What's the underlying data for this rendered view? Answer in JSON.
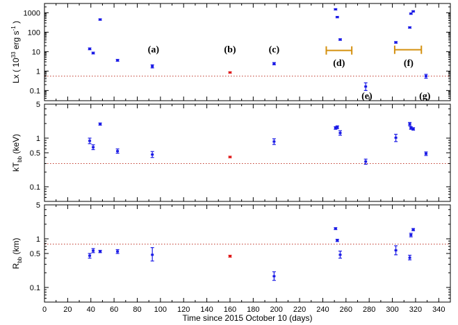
{
  "chart_data": {
    "type": "scatter",
    "xlabel": "Time since 2015 October 10 (days)",
    "xlim": [
      0,
      350
    ],
    "xticks": [
      0,
      20,
      40,
      60,
      80,
      100,
      120,
      140,
      160,
      180,
      200,
      220,
      240,
      260,
      280,
      300,
      320,
      340
    ],
    "colors": {
      "points": "#1a1ae6",
      "highlight": "#e01a1a",
      "reference_line": "#c0392b",
      "bracket": "#d4900f"
    },
    "panels": [
      {
        "id": "lx",
        "ylabel_main": "Lx ( 10",
        "ylabel_exp": "33",
        "ylabel_unit": " erg s",
        "ylabel_exp2": "-1",
        "ylabel_end": " )",
        "yscale": "log",
        "ylim": [
          0.03,
          3000
        ],
        "yticks": [
          0.1,
          1,
          10,
          100,
          1000
        ],
        "yticklabels": [
          "0.1",
          "1",
          "10",
          "100",
          "1000"
        ],
        "reference_y": 0.55,
        "points": [
          {
            "x": 39,
            "y": 14,
            "lo": 12.5,
            "hi": 15.5
          },
          {
            "x": 42,
            "y": 8.5,
            "lo": 7.6,
            "hi": 9.4
          },
          {
            "x": 48,
            "y": 450,
            "lo": 410,
            "hi": 490
          },
          {
            "x": 63,
            "y": 3.6,
            "lo": 3.2,
            "hi": 4.0
          },
          {
            "x": 93,
            "y": 1.75,
            "lo": 1.45,
            "hi": 2.1
          },
          {
            "x": 160,
            "y": 0.85,
            "lo": 0.78,
            "hi": 0.92,
            "highlight": true
          },
          {
            "x": 198,
            "y": 2.4,
            "lo": 2.1,
            "hi": 2.75
          },
          {
            "x": 251,
            "y": 1500,
            "lo": 1380,
            "hi": 1620
          },
          {
            "x": 252.5,
            "y": 600,
            "lo": 550,
            "hi": 650
          },
          {
            "x": 255,
            "y": 42,
            "lo": 38,
            "hi": 46
          },
          {
            "x": 277,
            "y": 0.16,
            "lo": 0.1,
            "hi": 0.25
          },
          {
            "x": 303,
            "y": 30,
            "lo": 27,
            "hi": 33
          },
          {
            "x": 315,
            "y": 175,
            "lo": 160,
            "hi": 190
          },
          {
            "x": 316,
            "y": 900,
            "lo": 830,
            "hi": 970
          },
          {
            "x": 318,
            "y": 1180,
            "lo": 1090,
            "hi": 1270
          },
          {
            "x": 329,
            "y": 0.55,
            "lo": 0.43,
            "hi": 0.68
          }
        ],
        "brackets": [
          {
            "x0": 243,
            "x1": 265,
            "y": 11.5
          },
          {
            "x0": 302,
            "x1": 325,
            "y": 12.5
          }
        ],
        "annotations": [
          {
            "text": "(a)",
            "x": 94,
            "y": 14
          },
          {
            "text": "(b)",
            "x": 160,
            "y": 14
          },
          {
            "text": "(c)",
            "x": 198,
            "y": 14
          },
          {
            "text": "(d)",
            "x": 254,
            "y": 2.8
          },
          {
            "text": "(e)",
            "x": 278,
            "y": 0.055
          },
          {
            "text": "(f)",
            "x": 314,
            "y": 2.8
          },
          {
            "text": "(g)",
            "x": 328,
            "y": 0.055
          }
        ]
      },
      {
        "id": "kt",
        "ylabel_main": "kT",
        "ylabel_sub": "bb",
        "ylabel_end": " (keV)",
        "yscale": "log",
        "ylim": [
          0.05,
          5
        ],
        "yticks": [
          0.1,
          0.5,
          1,
          5
        ],
        "yticklabels": [
          "0.1",
          "0.5",
          "1",
          "5"
        ],
        "reference_y": 0.3,
        "points": [
          {
            "x": 39,
            "y": 0.88,
            "lo": 0.77,
            "hi": 1.0
          },
          {
            "x": 42,
            "y": 0.65,
            "lo": 0.58,
            "hi": 0.73
          },
          {
            "x": 48,
            "y": 1.95,
            "lo": 1.85,
            "hi": 2.05
          },
          {
            "x": 63,
            "y": 0.54,
            "lo": 0.49,
            "hi": 0.6
          },
          {
            "x": 93,
            "y": 0.46,
            "lo": 0.4,
            "hi": 0.53
          },
          {
            "x": 160,
            "y": 0.41,
            "lo": 0.395,
            "hi": 0.425,
            "highlight": true
          },
          {
            "x": 198,
            "y": 0.85,
            "lo": 0.74,
            "hi": 0.97
          },
          {
            "x": 251,
            "y": 1.62,
            "lo": 1.52,
            "hi": 1.72
          },
          {
            "x": 252.5,
            "y": 1.68,
            "lo": 1.57,
            "hi": 1.79
          },
          {
            "x": 255,
            "y": 1.28,
            "lo": 1.15,
            "hi": 1.42
          },
          {
            "x": 277,
            "y": 0.33,
            "lo": 0.29,
            "hi": 0.37
          },
          {
            "x": 303,
            "y": 1.02,
            "lo": 0.85,
            "hi": 1.2
          },
          {
            "x": 315,
            "y": 1.95,
            "lo": 1.8,
            "hi": 2.1
          },
          {
            "x": 316,
            "y": 1.62,
            "lo": 1.52,
            "hi": 1.72
          },
          {
            "x": 318,
            "y": 1.55,
            "lo": 1.46,
            "hi": 1.64
          },
          {
            "x": 329,
            "y": 0.48,
            "lo": 0.44,
            "hi": 0.52
          }
        ]
      },
      {
        "id": "rbb",
        "ylabel_main": "R",
        "ylabel_sub": "bb",
        "ylabel_end": " (km)",
        "yscale": "log",
        "ylim": [
          0.05,
          5
        ],
        "yticks": [
          0.1,
          0.5,
          1,
          5
        ],
        "yticklabels": [
          "0.1",
          "0.5",
          "1",
          "5"
        ],
        "reference_y": 0.78,
        "points": [
          {
            "x": 39,
            "y": 0.45,
            "lo": 0.4,
            "hi": 0.5
          },
          {
            "x": 42,
            "y": 0.57,
            "lo": 0.52,
            "hi": 0.63
          },
          {
            "x": 48,
            "y": 0.55,
            "lo": 0.52,
            "hi": 0.58
          },
          {
            "x": 63,
            "y": 0.55,
            "lo": 0.5,
            "hi": 0.6
          },
          {
            "x": 93,
            "y": 0.47,
            "lo": 0.35,
            "hi": 0.66
          },
          {
            "x": 160,
            "y": 0.44,
            "lo": 0.42,
            "hi": 0.46,
            "highlight": true
          },
          {
            "x": 198,
            "y": 0.17,
            "lo": 0.14,
            "hi": 0.21
          },
          {
            "x": 251,
            "y": 1.62,
            "lo": 1.55,
            "hi": 1.7
          },
          {
            "x": 252.5,
            "y": 0.93,
            "lo": 0.88,
            "hi": 0.98
          },
          {
            "x": 255,
            "y": 0.47,
            "lo": 0.4,
            "hi": 0.56
          },
          {
            "x": 303,
            "y": 0.58,
            "lo": 0.47,
            "hi": 0.72
          },
          {
            "x": 315,
            "y": 0.41,
            "lo": 0.37,
            "hi": 0.46
          },
          {
            "x": 316,
            "y": 1.2,
            "lo": 1.1,
            "hi": 1.3
          },
          {
            "x": 318,
            "y": 1.55,
            "lo": 1.47,
            "hi": 1.63
          }
        ]
      }
    ]
  }
}
